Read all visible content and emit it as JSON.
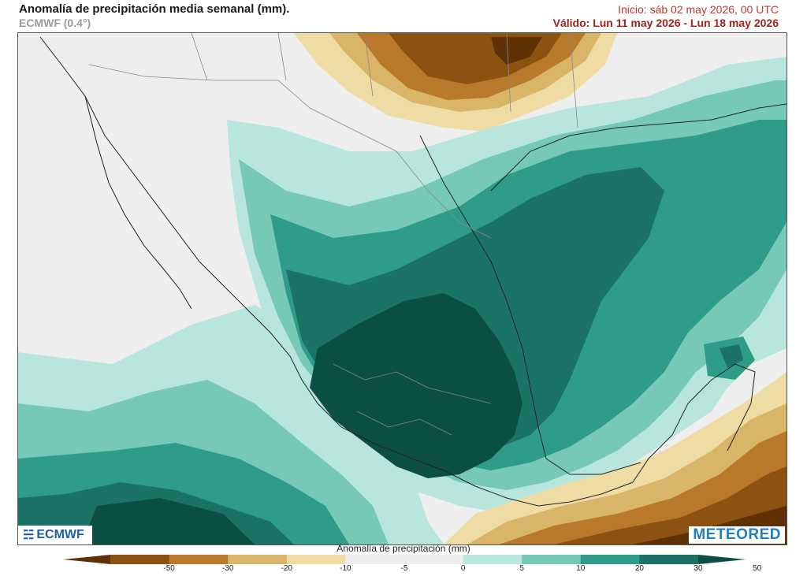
{
  "header": {
    "title": "Anomalía de precipitación media semanal (mm).",
    "model": "ECMWF (0.4°)",
    "start": "Inicio:  sáb 02 may 2026, 00 UTC",
    "valid": "Válido: Lun 11 may 2026 - Lun 18 may 2026"
  },
  "logos": {
    "left": "ECMWF",
    "right": "METEORED"
  },
  "legend": {
    "label": "Anomalía de precipitación (mm)",
    "ticks": [
      "-50",
      "-30",
      "-20",
      "-10",
      "-5",
      "0",
      "5",
      "10",
      "20",
      "30",
      "50"
    ],
    "colors": [
      "#5e3206",
      "#8c5212",
      "#b8792b",
      "#d9b56a",
      "#efdca5",
      "#eeeeee",
      "#eeeeee",
      "#b9e6dc",
      "#76c9b6",
      "#2e9c89",
      "#1a7365",
      "#0b4f44"
    ]
  }
}
